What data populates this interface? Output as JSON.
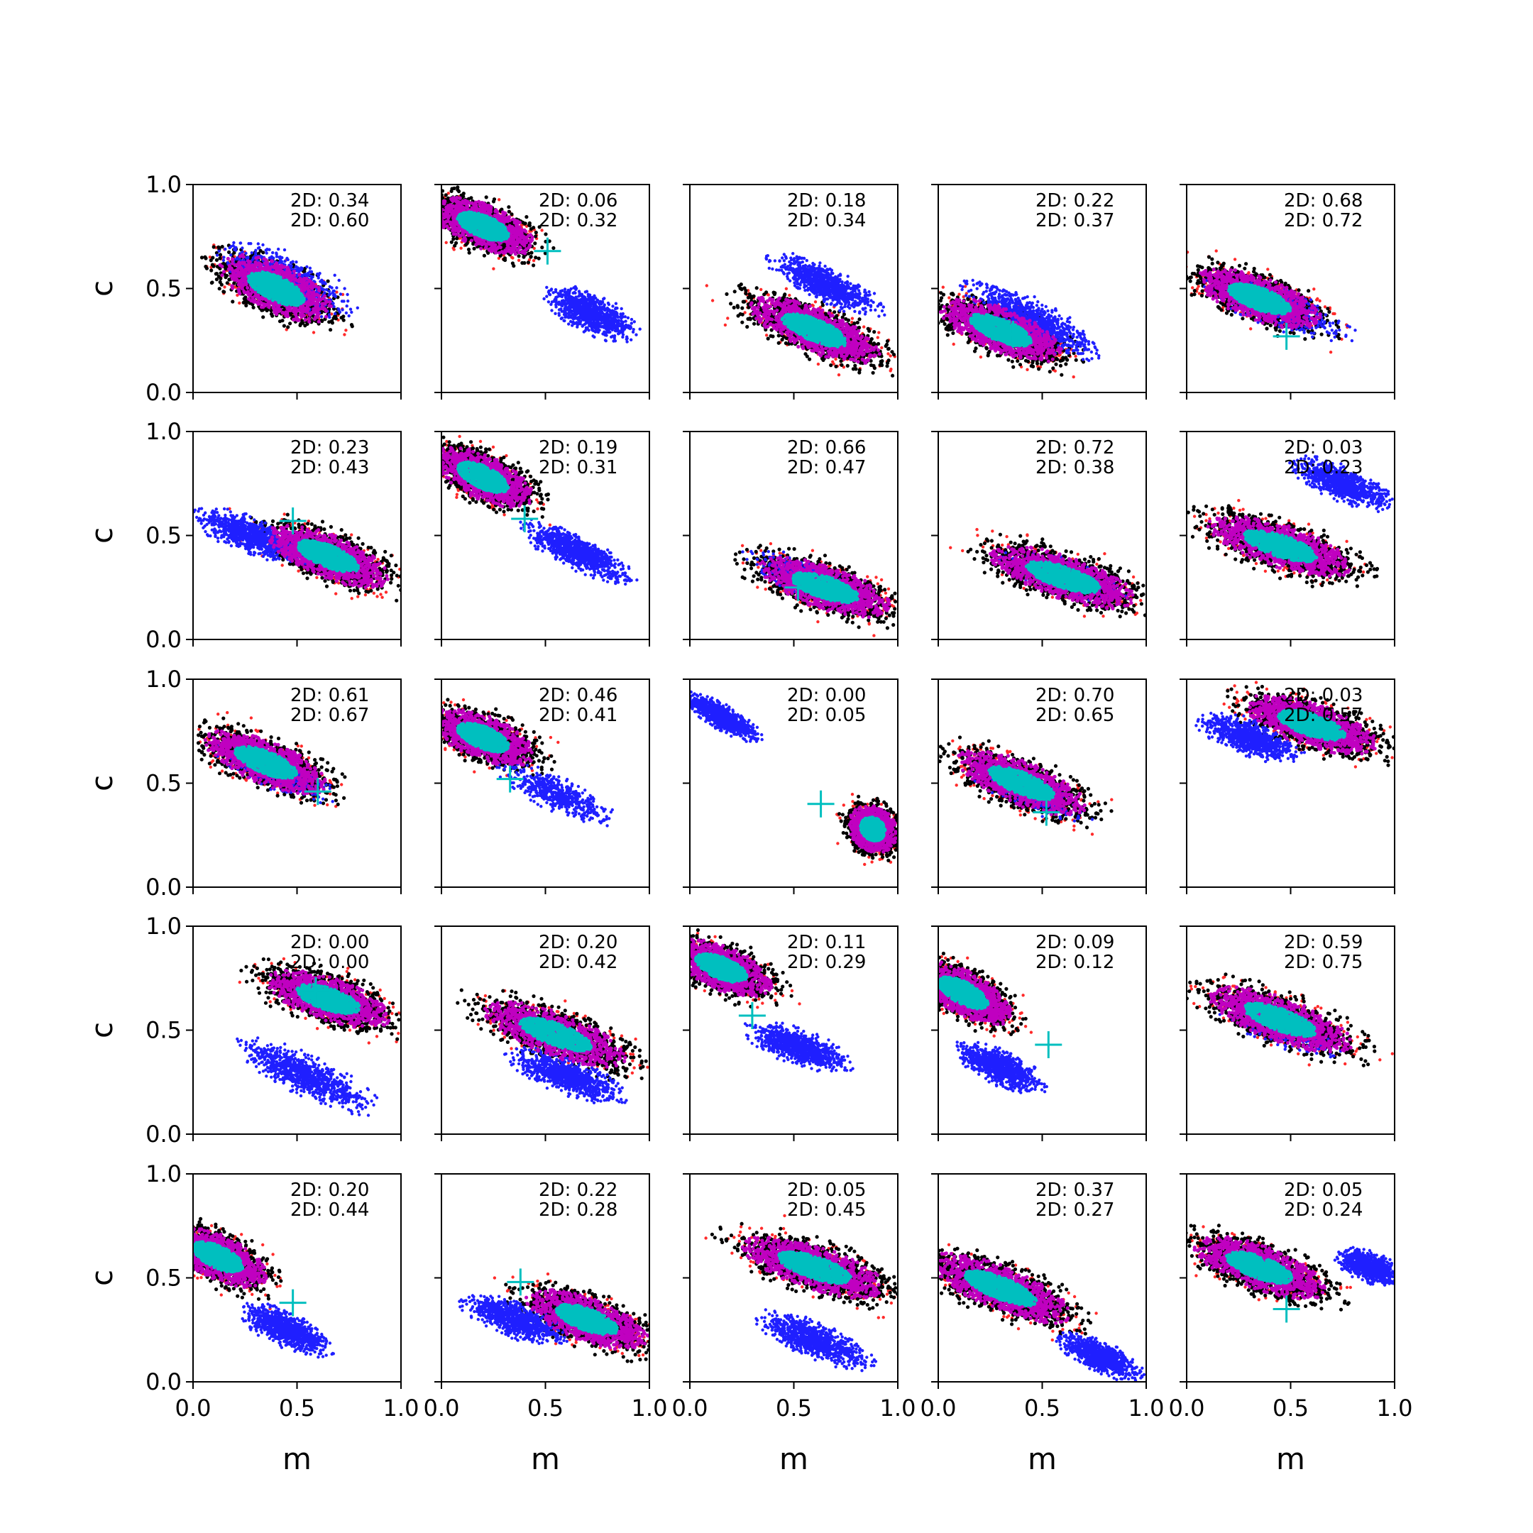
{
  "chart_data": {
    "type": "scatter",
    "layout": {
      "rows": 5,
      "cols": 5
    },
    "xlabel": "m",
    "ylabel": "c",
    "xlim": [
      0,
      1
    ],
    "ylim": [
      0,
      1
    ],
    "xticks": [
      "0.0",
      "0.5",
      "1.0"
    ],
    "yticks": [
      "0.0",
      "0.5",
      "1.0"
    ],
    "grid": false,
    "colors": {
      "outer": "#ff2a2a",
      "band": "#000000",
      "ring": "#c000c0",
      "core": "#00bfbf",
      "blue": "#1f1fff",
      "marker": "#00bfbf"
    },
    "series": [
      {
        "annotations": [
          "2D: 0.34",
          "2D: 0.60"
        ],
        "truth": null,
        "main": {
          "cx": 0.4,
          "cy": 0.5,
          "sx": 0.28,
          "sy": 0.11,
          "angle": -25
        },
        "blue": {
          "cx": 0.45,
          "cy": 0.55,
          "sx": 0.3,
          "sy": 0.1,
          "angle": -25,
          "frac": 0.7
        }
      },
      {
        "annotations": [
          "2D: 0.06",
          "2D: 0.32"
        ],
        "truth": [
          0.51,
          0.68
        ],
        "main": {
          "cx": 0.2,
          "cy": 0.8,
          "sx": 0.25,
          "sy": 0.1,
          "angle": -22
        },
        "blue": {
          "cx": 0.72,
          "cy": 0.38,
          "sx": 0.2,
          "sy": 0.08,
          "angle": -25,
          "frac": 1.0
        }
      },
      {
        "annotations": [
          "2D: 0.18",
          "2D: 0.34"
        ],
        "truth": null,
        "main": {
          "cx": 0.6,
          "cy": 0.3,
          "sx": 0.32,
          "sy": 0.1,
          "angle": -22
        },
        "blue": {
          "cx": 0.65,
          "cy": 0.52,
          "sx": 0.25,
          "sy": 0.07,
          "angle": -25,
          "frac": 1.0
        }
      },
      {
        "annotations": [
          "2D: 0.22",
          "2D: 0.37"
        ],
        "truth": [
          0.36,
          0.28
        ],
        "main": {
          "cx": 0.3,
          "cy": 0.3,
          "sx": 0.3,
          "sy": 0.1,
          "angle": -22
        },
        "blue": {
          "cx": 0.45,
          "cy": 0.35,
          "sx": 0.3,
          "sy": 0.08,
          "angle": -28,
          "frac": 1.0
        }
      },
      {
        "annotations": [
          "2D: 0.68",
          "2D: 0.72"
        ],
        "truth": [
          0.48,
          0.27
        ],
        "main": {
          "cx": 0.35,
          "cy": 0.45,
          "sx": 0.3,
          "sy": 0.1,
          "angle": -20
        },
        "blue": {
          "cx": 0.45,
          "cy": 0.4,
          "sx": 0.3,
          "sy": 0.08,
          "angle": -20,
          "frac": 0.5
        }
      },
      {
        "annotations": [
          "2D: 0.23",
          "2D: 0.43"
        ],
        "truth": [
          0.48,
          0.57
        ],
        "main": {
          "cx": 0.65,
          "cy": 0.4,
          "sx": 0.3,
          "sy": 0.1,
          "angle": -22
        },
        "blue": {
          "cx": 0.28,
          "cy": 0.5,
          "sx": 0.25,
          "sy": 0.07,
          "angle": -20,
          "frac": 1.0
        }
      },
      {
        "annotations": [
          "2D: 0.19",
          "2D: 0.31"
        ],
        "truth": [
          0.4,
          0.58
        ],
        "main": {
          "cx": 0.2,
          "cy": 0.78,
          "sx": 0.25,
          "sy": 0.1,
          "angle": -25
        },
        "blue": {
          "cx": 0.65,
          "cy": 0.42,
          "sx": 0.25,
          "sy": 0.07,
          "angle": -25,
          "frac": 1.0
        }
      },
      {
        "annotations": [
          "2D: 0.66",
          "2D: 0.47"
        ],
        "truth": [
          0.52,
          0.25
        ],
        "main": {
          "cx": 0.65,
          "cy": 0.25,
          "sx": 0.32,
          "sy": 0.1,
          "angle": -18
        },
        "blue": {
          "cx": 0.55,
          "cy": 0.3,
          "sx": 0.25,
          "sy": 0.07,
          "angle": -20,
          "frac": 0.4
        }
      },
      {
        "annotations": [
          "2D: 0.72",
          "2D: 0.38"
        ],
        "truth": null,
        "main": {
          "cx": 0.6,
          "cy": 0.3,
          "sx": 0.35,
          "sy": 0.1,
          "angle": -18
        },
        "blue": {
          "cx": 0.6,
          "cy": 0.3,
          "sx": 0.25,
          "sy": 0.07,
          "angle": -18,
          "frac": 0.3
        }
      },
      {
        "annotations": [
          "2D: 0.03",
          "2D: 0.23"
        ],
        "truth": null,
        "main": {
          "cx": 0.45,
          "cy": 0.45,
          "sx": 0.35,
          "sy": 0.1,
          "angle": -18
        },
        "blue": {
          "cx": 0.75,
          "cy": 0.75,
          "sx": 0.22,
          "sy": 0.07,
          "angle": -22,
          "frac": 1.0
        }
      },
      {
        "annotations": [
          "2D: 0.61",
          "2D: 0.67"
        ],
        "truth": [
          0.6,
          0.46
        ],
        "main": {
          "cx": 0.35,
          "cy": 0.6,
          "sx": 0.3,
          "sy": 0.1,
          "angle": -22
        },
        "blue": {
          "cx": 0.4,
          "cy": 0.55,
          "sx": 0.25,
          "sy": 0.07,
          "angle": -22,
          "frac": 0.4
        }
      },
      {
        "annotations": [
          "2D: 0.46",
          "2D: 0.41"
        ],
        "truth": [
          0.33,
          0.52
        ],
        "main": {
          "cx": 0.2,
          "cy": 0.72,
          "sx": 0.25,
          "sy": 0.1,
          "angle": -22
        },
        "blue": {
          "cx": 0.55,
          "cy": 0.45,
          "sx": 0.25,
          "sy": 0.07,
          "angle": -25,
          "frac": 0.6
        }
      },
      {
        "annotations": [
          "2D: 0.00",
          "2D: 0.05"
        ],
        "truth": [
          0.63,
          0.4
        ],
        "main": {
          "cx": 0.88,
          "cy": 0.28,
          "sx": 0.12,
          "sy": 0.1,
          "angle": -40
        },
        "blue": {
          "cx": 0.15,
          "cy": 0.82,
          "sx": 0.18,
          "sy": 0.05,
          "angle": -30,
          "frac": 1.0
        }
      },
      {
        "annotations": [
          "2D: 0.70",
          "2D: 0.65"
        ],
        "truth": [
          0.52,
          0.36
        ],
        "main": {
          "cx": 0.4,
          "cy": 0.5,
          "sx": 0.32,
          "sy": 0.1,
          "angle": -22
        },
        "blue": {
          "cx": 0.45,
          "cy": 0.45,
          "sx": 0.25,
          "sy": 0.07,
          "angle": -22,
          "frac": 0.3
        }
      },
      {
        "annotations": [
          "2D: 0.03",
          "2D: 0.57"
        ],
        "truth": null,
        "main": {
          "cx": 0.6,
          "cy": 0.78,
          "sx": 0.32,
          "sy": 0.1,
          "angle": -18
        },
        "blue": {
          "cx": 0.3,
          "cy": 0.72,
          "sx": 0.22,
          "sy": 0.07,
          "angle": -20,
          "frac": 1.0
        }
      },
      {
        "annotations": [
          "2D: 0.00",
          "2D: 0.00"
        ],
        "truth": [
          0.59,
          0.69
        ],
        "main": {
          "cx": 0.65,
          "cy": 0.65,
          "sx": 0.3,
          "sy": 0.1,
          "angle": -18
        },
        "blue": {
          "cx": 0.55,
          "cy": 0.28,
          "sx": 0.3,
          "sy": 0.08,
          "angle": -25,
          "frac": 1.0
        }
      },
      {
        "annotations": [
          "2D: 0.20",
          "2D: 0.42"
        ],
        "truth": null,
        "main": {
          "cx": 0.55,
          "cy": 0.48,
          "sx": 0.35,
          "sy": 0.1,
          "angle": -20
        },
        "blue": {
          "cx": 0.6,
          "cy": 0.28,
          "sx": 0.25,
          "sy": 0.07,
          "angle": -20,
          "frac": 1.0
        }
      },
      {
        "annotations": [
          "2D: 0.11",
          "2D: 0.29"
        ],
        "truth": [
          0.3,
          0.57
        ],
        "main": {
          "cx": 0.15,
          "cy": 0.8,
          "sx": 0.25,
          "sy": 0.1,
          "angle": -22
        },
        "blue": {
          "cx": 0.52,
          "cy": 0.42,
          "sx": 0.22,
          "sy": 0.07,
          "angle": -20,
          "frac": 1.0
        }
      },
      {
        "annotations": [
          "2D: 0.09",
          "2D: 0.12"
        ],
        "truth": [
          0.53,
          0.43
        ],
        "main": {
          "cx": 0.12,
          "cy": 0.68,
          "sx": 0.25,
          "sy": 0.1,
          "angle": -28
        },
        "blue": {
          "cx": 0.3,
          "cy": 0.32,
          "sx": 0.2,
          "sy": 0.07,
          "angle": -25,
          "frac": 1.0
        }
      },
      {
        "annotations": [
          "2D: 0.59",
          "2D: 0.75"
        ],
        "truth": null,
        "main": {
          "cx": 0.45,
          "cy": 0.55,
          "sx": 0.35,
          "sy": 0.1,
          "angle": -20
        },
        "blue": {
          "cx": 0.45,
          "cy": 0.5,
          "sx": 0.25,
          "sy": 0.07,
          "angle": -20,
          "frac": 0.2
        }
      },
      {
        "annotations": [
          "2D: 0.20",
          "2D: 0.44"
        ],
        "truth": [
          0.48,
          0.38
        ],
        "main": {
          "cx": 0.12,
          "cy": 0.6,
          "sx": 0.25,
          "sy": 0.1,
          "angle": -25
        },
        "blue": {
          "cx": 0.45,
          "cy": 0.25,
          "sx": 0.2,
          "sy": 0.07,
          "angle": -25,
          "frac": 1.0
        }
      },
      {
        "annotations": [
          "2D: 0.22",
          "2D: 0.28"
        ],
        "truth": [
          0.38,
          0.48
        ],
        "main": {
          "cx": 0.7,
          "cy": 0.3,
          "sx": 0.3,
          "sy": 0.1,
          "angle": -20
        },
        "blue": {
          "cx": 0.35,
          "cy": 0.3,
          "sx": 0.22,
          "sy": 0.07,
          "angle": -20,
          "frac": 1.0
        }
      },
      {
        "annotations": [
          "2D: 0.05",
          "2D: 0.45"
        ],
        "truth": null,
        "main": {
          "cx": 0.6,
          "cy": 0.55,
          "sx": 0.35,
          "sy": 0.1,
          "angle": -18
        },
        "blue": {
          "cx": 0.6,
          "cy": 0.2,
          "sx": 0.25,
          "sy": 0.07,
          "angle": -22,
          "frac": 1.0
        }
      },
      {
        "annotations": [
          "2D: 0.37",
          "2D: 0.27"
        ],
        "truth": null,
        "main": {
          "cx": 0.3,
          "cy": 0.45,
          "sx": 0.35,
          "sy": 0.1,
          "angle": -22
        },
        "blue": {
          "cx": 0.78,
          "cy": 0.12,
          "sx": 0.18,
          "sy": 0.06,
          "angle": -25,
          "frac": 1.0
        }
      },
      {
        "annotations": [
          "2D: 0.05",
          "2D: 0.24"
        ],
        "truth": [
          0.48,
          0.35
        ],
        "main": {
          "cx": 0.35,
          "cy": 0.55,
          "sx": 0.32,
          "sy": 0.1,
          "angle": -20
        },
        "blue": {
          "cx": 0.88,
          "cy": 0.55,
          "sx": 0.15,
          "sy": 0.06,
          "angle": -20,
          "frac": 1.0
        }
      }
    ]
  }
}
